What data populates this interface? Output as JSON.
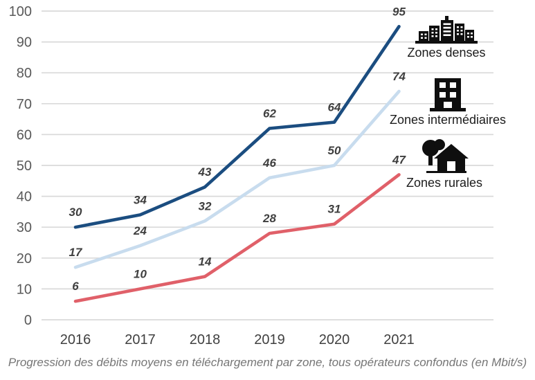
{
  "chart_data": {
    "type": "line",
    "categories": [
      "2016",
      "2017",
      "2018",
      "2019",
      "2020",
      "2021"
    ],
    "series": [
      {
        "name": "Zones denses",
        "color": "#1b4d80",
        "values": [
          30,
          34,
          43,
          62,
          64,
          95
        ]
      },
      {
        "name": "Zones intermédiaires",
        "color": "#c8dcee",
        "values": [
          17,
          24,
          32,
          46,
          50,
          74
        ]
      },
      {
        "name": "Zones rurales",
        "color": "#e06069",
        "values": [
          6,
          10,
          14,
          28,
          31,
          47
        ]
      }
    ],
    "title": "",
    "xlabel": "",
    "ylabel": "",
    "ylim": [
      0,
      100
    ],
    "ytick_step": 10,
    "grid": "horizontal",
    "data_labels": true,
    "legend_position": "right",
    "caption": "Progression des débits moyens en téléchargement par zone, tous opérateurs confondus (en Mbit/s)"
  },
  "legend": {
    "items": [
      {
        "label": "Zones denses",
        "icon": "city-skyline-icon"
      },
      {
        "label": "Zones intermédiaires",
        "icon": "office-building-icon"
      },
      {
        "label": "Zones rurales",
        "icon": "house-and-tree-icon"
      }
    ]
  },
  "colors": {
    "grid": "#d9d9d9",
    "y_axis_text": "#595959",
    "x_axis_text": "#404040",
    "data_label_text": "#3f3f3f",
    "caption_text": "#757575",
    "icon": "#0f0f0f"
  }
}
